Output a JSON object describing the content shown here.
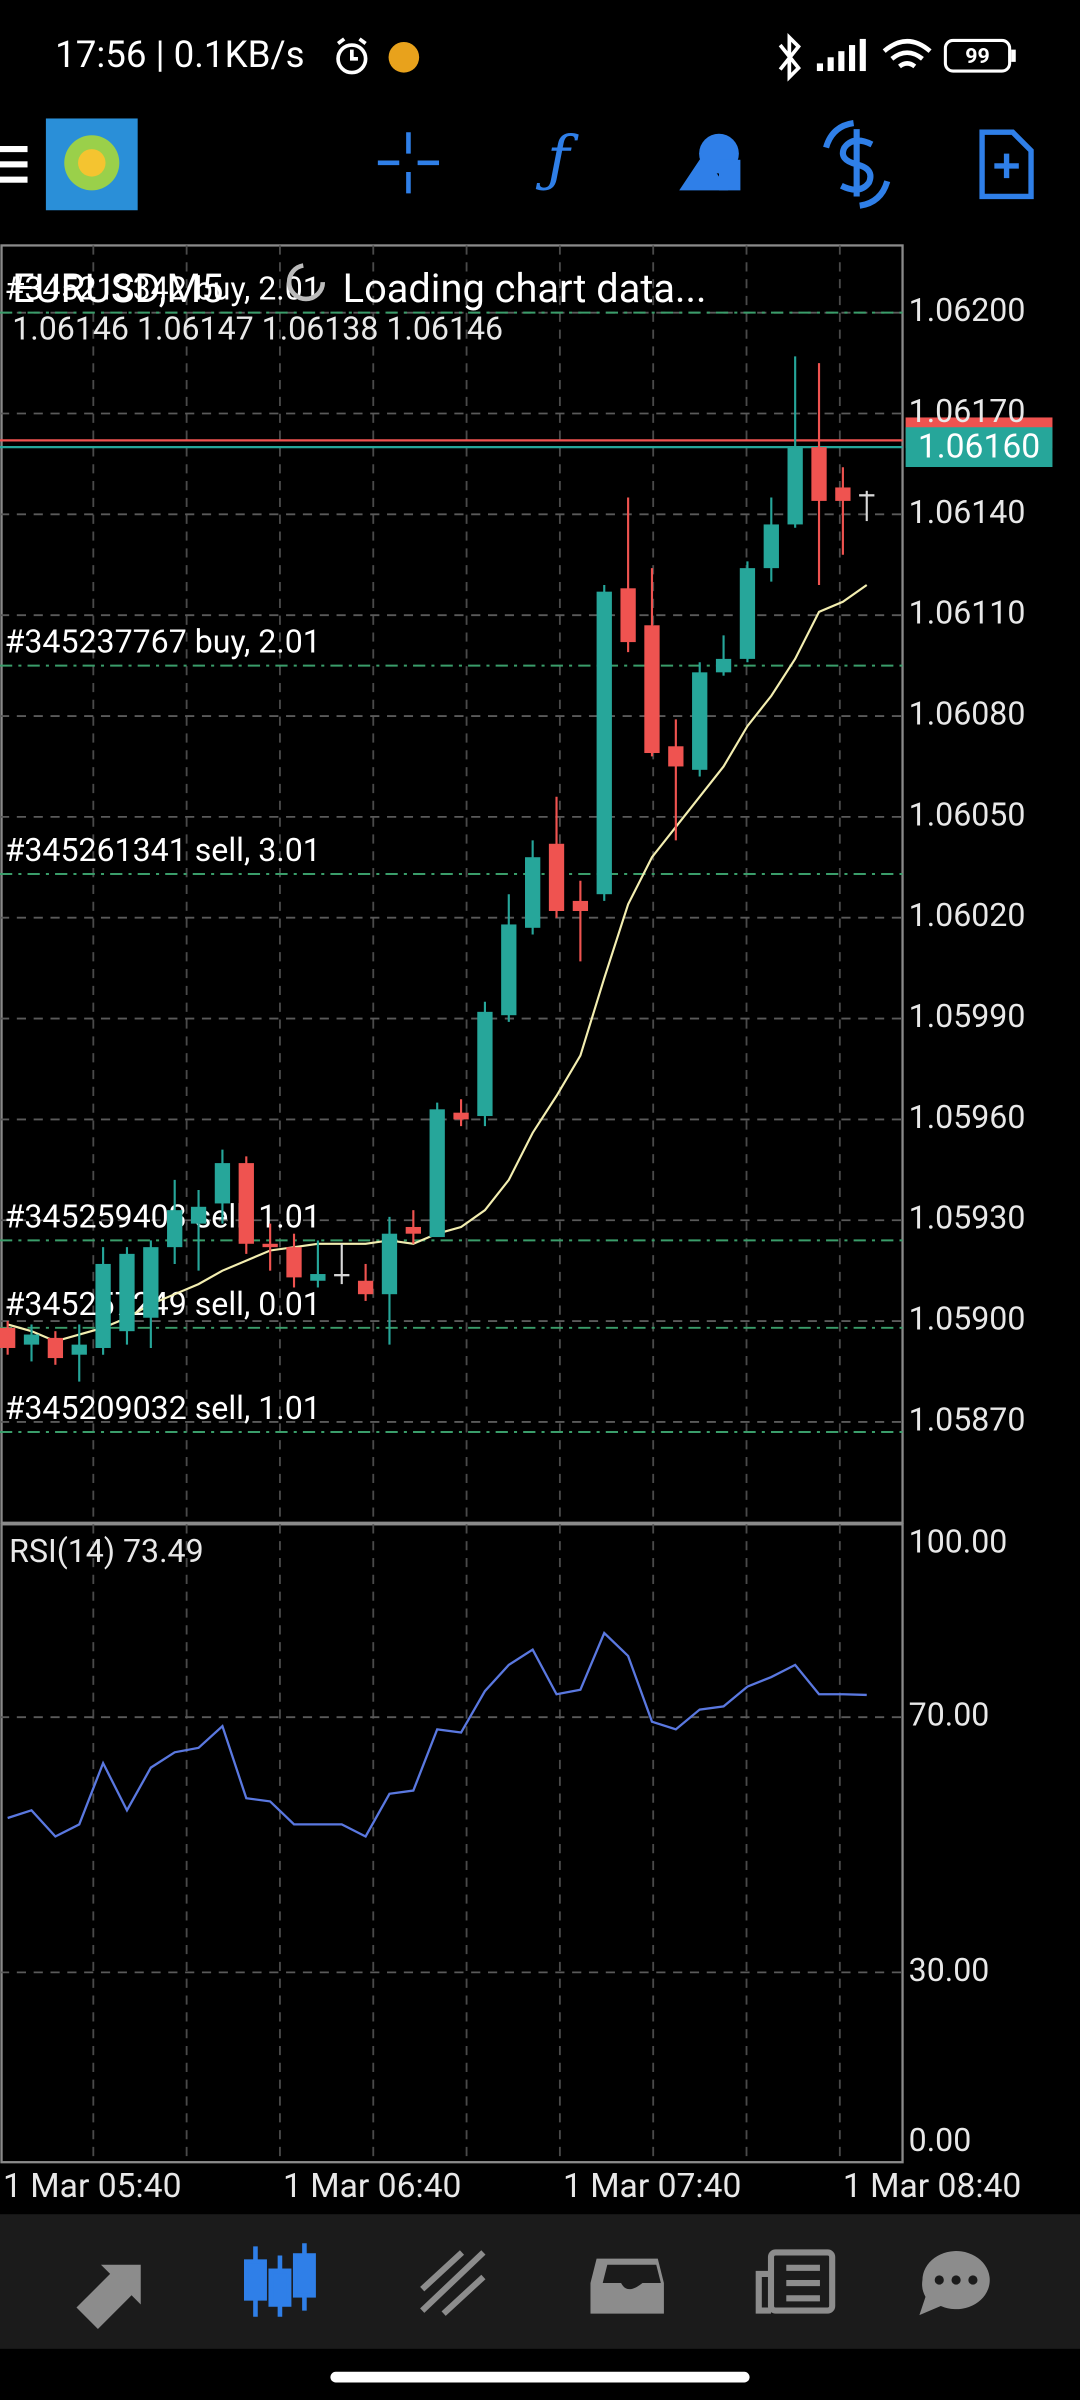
{
  "status_bar": {
    "time": "17:56 | 0.1KB/s",
    "battery": "99"
  },
  "chart_data": [
    {
      "type": "candlestick",
      "title": "EURUSD,M5",
      "subtitle": "Loading chart data...",
      "ohlc_label": "1.06146 1.06147 1.06138 1.06146",
      "open": [
        1.05898,
        1.05893,
        1.05895,
        1.0589,
        1.05892,
        1.05897,
        1.05901,
        1.05922,
        1.05929,
        1.05935,
        1.05947,
        1.05923,
        1.05922,
        1.05912,
        1.05914,
        1.05912,
        1.05908,
        1.05928,
        1.05925,
        1.05962,
        1.05961,
        1.05991,
        1.06017,
        1.06042,
        1.06025,
        1.06027,
        1.06118,
        1.06107,
        1.06071,
        1.06064,
        1.06093,
        1.06097,
        1.06124,
        1.06137,
        1.0616,
        1.06148,
        1.06146
      ],
      "high": [
        1.059,
        1.05899,
        1.05897,
        1.05899,
        1.05922,
        1.05922,
        1.05924,
        1.05942,
        1.05939,
        1.05951,
        1.05949,
        1.05929,
        1.05926,
        1.05924,
        1.05923,
        1.05917,
        1.05931,
        1.05933,
        1.05965,
        1.05966,
        1.05995,
        1.06027,
        1.06043,
        1.06056,
        1.06031,
        1.06119,
        1.06145,
        1.06124,
        1.06079,
        1.06096,
        1.06104,
        1.06126,
        1.06145,
        1.06187,
        1.06185,
        1.06154,
        1.06147
      ],
      "low": [
        1.0589,
        1.05888,
        1.05887,
        1.05882,
        1.0589,
        1.05893,
        1.05892,
        1.05917,
        1.05915,
        1.05929,
        1.0592,
        1.05915,
        1.0591,
        1.0591,
        1.05911,
        1.05906,
        1.05893,
        1.05923,
        1.05925,
        1.05958,
        1.05958,
        1.05989,
        1.06015,
        1.0602,
        1.06007,
        1.06025,
        1.06099,
        1.06068,
        1.06043,
        1.06062,
        1.06092,
        1.06096,
        1.0612,
        1.06136,
        1.06119,
        1.06128,
        1.06138
      ],
      "close": [
        1.05892,
        1.05896,
        1.05889,
        1.05893,
        1.05917,
        1.0592,
        1.05922,
        1.05933,
        1.05934,
        1.05947,
        1.05923,
        1.05922,
        1.05913,
        1.05914,
        1.05914,
        1.05908,
        1.05926,
        1.05926,
        1.05963,
        1.0596,
        1.05992,
        1.06018,
        1.06038,
        1.06022,
        1.06022,
        1.06117,
        1.06102,
        1.06069,
        1.06065,
        1.06093,
        1.06097,
        1.06124,
        1.06137,
        1.0616,
        1.06144,
        1.06144,
        1.06146
      ],
      "colors": {
        "up": "#26a69a",
        "down": "#ef5350",
        "flat": "#d8d8d8"
      },
      "ma": {
        "color": "#f3eeb0",
        "values": [
          1.05899,
          1.05897,
          1.05894,
          1.05896,
          1.05898,
          1.05901,
          1.05905,
          1.05908,
          1.05911,
          1.05915,
          1.05918,
          1.05921,
          1.05922,
          1.05923,
          1.05923,
          1.05923,
          1.05924,
          1.05923,
          1.05926,
          1.05928,
          1.05933,
          1.05942,
          1.05956,
          1.05967,
          1.05979,
          1.06002,
          1.06024,
          1.06038,
          1.06047,
          1.06056,
          1.06065,
          1.06077,
          1.06086,
          1.06097,
          1.06111,
          1.06114,
          1.06119
        ]
      },
      "ylim": [
        1.0584,
        1.0622
      ],
      "yticks": [
        {
          "value": 1.062,
          "label": "1.06200"
        },
        {
          "value": 1.0617,
          "label": "1.06170"
        },
        {
          "value": 1.0614,
          "label": "1.06140"
        },
        {
          "value": 1.0611,
          "label": "1.06110"
        },
        {
          "value": 1.0608,
          "label": "1.06080"
        },
        {
          "value": 1.0605,
          "label": "1.06050"
        },
        {
          "value": 1.0602,
          "label": "1.06020"
        },
        {
          "value": 1.0599,
          "label": "1.05990"
        },
        {
          "value": 1.0596,
          "label": "1.05960"
        },
        {
          "value": 1.0593,
          "label": "1.05930"
        },
        {
          "value": 1.059,
          "label": "1.05900"
        },
        {
          "value": 1.0587,
          "label": "1.05870"
        }
      ],
      "xticks": [
        "1 Mar 05:40",
        "1 Mar 06:40",
        "1 Mar 07:40",
        "1 Mar 08:40"
      ],
      "grid": true,
      "order_color": "#3a9d6a",
      "orders": [
        {
          "label": "#345213342 buy, 2.01",
          "price": 1.062
        },
        {
          "label": "#345237767 buy, 2.01",
          "price": 1.06095
        },
        {
          "label": "#345261341 sell, 3.01",
          "price": 1.06033
        },
        {
          "label": "#345259403 sell, 1.01",
          "price": 1.05924
        },
        {
          "label": "#345257249 sell, 0.01",
          "price": 1.05898
        },
        {
          "label": "#345209032 sell, 1.01",
          "price": 1.05867
        }
      ],
      "bid": {
        "value": 1.0616,
        "label": "1.06160",
        "color": "#26a69a"
      },
      "ask": {
        "value": 1.06162,
        "color": "#ef5350"
      }
    },
    {
      "type": "line",
      "title": "RSI(14) 73.49",
      "color": "#5a78e0",
      "values": [
        54.2,
        55.4,
        51.3,
        53.2,
        62.8,
        55.4,
        62.1,
        64.5,
        65.2,
        68.6,
        57.3,
        56.8,
        53.2,
        53.2,
        53.2,
        51.3,
        58.0,
        58.5,
        68.1,
        67.6,
        74.1,
        78.2,
        80.6,
        73.6,
        74.3,
        83.2,
        79.6,
        69.3,
        68.1,
        71.2,
        71.7,
        74.8,
        76.3,
        78.2,
        73.6,
        73.6,
        73.49
      ],
      "ylim": [
        0,
        100
      ],
      "yticks": [
        {
          "value": 100,
          "label": "100.00"
        },
        {
          "value": 70,
          "label": "70.00"
        },
        {
          "value": 30,
          "label": "30.00"
        },
        {
          "value": 0,
          "label": "0.00"
        }
      ]
    }
  ]
}
